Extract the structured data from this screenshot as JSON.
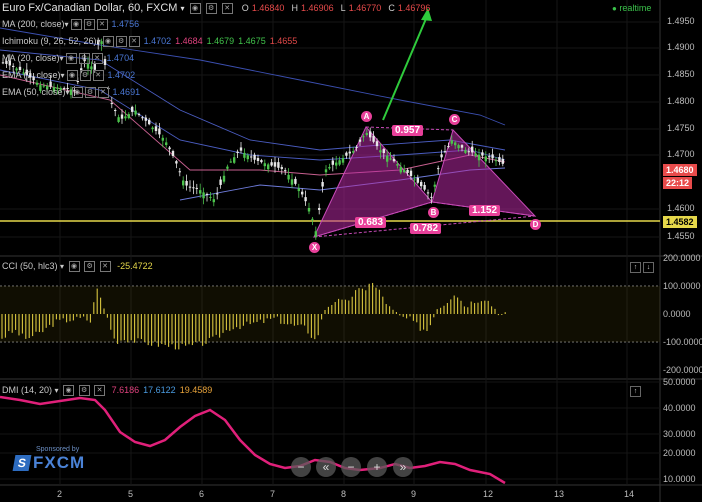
{
  "header": {
    "symbol": "Euro Fx/Canadian Dollar, 60, FXCM",
    "o_label": "O",
    "o_value": "1.46840",
    "h_label": "H",
    "h_value": "1.46906",
    "l_label": "L",
    "l_value": "1.46770",
    "c_label": "C",
    "c_value": "1.46796",
    "realtime": "realtime"
  },
  "indicators": [
    {
      "name": "MA (200, close)",
      "values": [
        "1.4756"
      ],
      "colors": [
        "#4a77d4"
      ]
    },
    {
      "name": "Ichimoku (9, 26, 52, 26)",
      "values": [
        "1.4702",
        "1.4684",
        "1.4679",
        "1.4675",
        "1.4655"
      ],
      "colors": [
        "#4a77d4",
        "#e0427e",
        "#41c34b",
        "#41c34b",
        "#e04848"
      ]
    },
    {
      "name": "MA (20, close)",
      "values": [
        "1.4704"
      ],
      "colors": [
        "#4a77d4"
      ]
    },
    {
      "name": "EMA (7, close)",
      "values": [
        "1.4702"
      ],
      "colors": [
        "#4a77d4"
      ]
    },
    {
      "name": "EMA (50, close)",
      "values": [
        "1.4691"
      ],
      "colors": [
        "#4a77d4"
      ]
    }
  ],
  "price_axis": [
    "1.4950",
    "1.4900",
    "1.4850",
    "1.4800",
    "1.4750",
    "1.4700",
    "1.4600",
    "1.4550"
  ],
  "price_tags": {
    "last": "1.4680",
    "countdown": "22:12",
    "level": "1.4582"
  },
  "pattern": {
    "points": [
      "X",
      "A",
      "B",
      "C",
      "D"
    ],
    "ratios": [
      "0.957",
      "0.683",
      "0.782",
      "1.152"
    ]
  },
  "cci": {
    "label": "CCI (50, hlc3)",
    "value": "-25.4722",
    "axis": [
      "200.0000",
      "100.0000",
      "0.0000",
      "-100.0000",
      "-200.0000"
    ]
  },
  "dmi": {
    "label": "DMI (14, 20)",
    "values": [
      "7.6186",
      "17.6122",
      "19.4589"
    ],
    "colors": [
      "#e0427e",
      "#4a9be0",
      "#e8a33a"
    ],
    "axis": [
      "50.0000",
      "40.0000",
      "30.0000",
      "20.0000",
      "10.0000"
    ]
  },
  "time_axis": [
    "2",
    "5",
    "6",
    "7",
    "8",
    "9",
    "12",
    "13",
    "14"
  ],
  "sponsor": {
    "line1": "Sponsored by",
    "line2": "FXCM"
  },
  "nav": [
    "−",
    "«",
    "−",
    "+",
    "»"
  ]
}
